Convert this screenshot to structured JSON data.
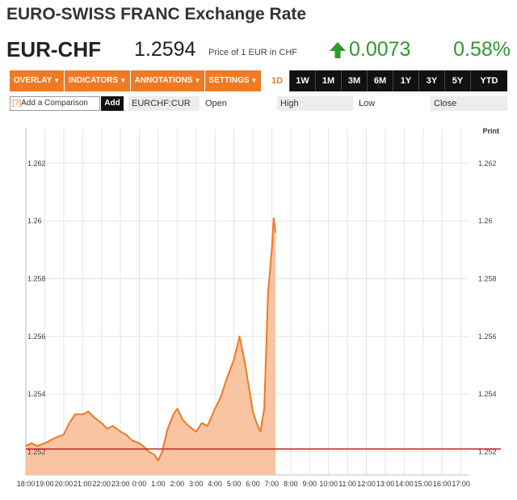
{
  "page": {
    "title": "EURO-SWISS FRANC Exchange Rate"
  },
  "quote": {
    "ticker": "EUR-CHF",
    "price": "1.2594",
    "price_desc": "Price of 1 EUR in CHF",
    "direction_icon": "up-arrow-icon",
    "change": "0.0073",
    "change_pct": "0.58%"
  },
  "toolbar": {
    "menus": [
      {
        "label": "OVERLAY"
      },
      {
        "label": "INDICATORS"
      },
      {
        "label": "ANNOTATIONS"
      },
      {
        "label": "SETTINGS"
      }
    ],
    "ranges": [
      "1D",
      "1W",
      "1M",
      "3M",
      "6M",
      "1Y",
      "3Y",
      "5Y",
      "YTD"
    ],
    "active_range": "1D"
  },
  "compare": {
    "placeholder": "Add a Comparison",
    "qmark": "[?]",
    "add_label": "Add",
    "symbol": "EURCHF:CUR",
    "open_label": "Open",
    "high_label": "High",
    "low_label": "Low",
    "close_label": "Close"
  },
  "print_label": "Print",
  "colors": {
    "accent": "#f07a23",
    "positive": "#2e9a2e",
    "area_fill": "#f8c4a2",
    "line": "#f07a23",
    "reference_line": "#d32f2f"
  },
  "chart_data": {
    "type": "area",
    "ylim": [
      1.2512,
      1.2632
    ],
    "y_ticks": [
      1.252,
      1.254,
      1.256,
      1.258,
      1.26,
      1.262
    ],
    "y_tick_labels": [
      "1.252",
      "1.254",
      "1.256",
      "1.258",
      "1.26",
      "1.262"
    ],
    "x_tick_labels": [
      "18:00",
      "19:00",
      "20:00",
      "21:00",
      "22:00",
      "23:00",
      "0:00",
      "1:00",
      "2:00",
      "3:00",
      "4:00",
      "5:00",
      "6:00",
      "7:00",
      "8:00",
      "9:00",
      "10:00",
      "11:00",
      "12:00",
      "13:00",
      "14:00",
      "15:00",
      "16:00",
      "17:00"
    ],
    "xlim": [
      0,
      23.4
    ],
    "reference_value": 1.2521,
    "grid": true,
    "series": [
      {
        "x": [
          0,
          0.3,
          0.6,
          1.0,
          1.3,
          1.6,
          2.0,
          2.3,
          2.6,
          3.0,
          3.3,
          3.6,
          4.0,
          4.3,
          4.6,
          5.0,
          5.3,
          5.6,
          6.0,
          6.2,
          6.5,
          6.8,
          7.0,
          7.2,
          7.5,
          7.8,
          8.0,
          8.3,
          8.6,
          9.0,
          9.3,
          9.6,
          10.0,
          10.3,
          10.6,
          11.0,
          11.3,
          11.6,
          12.0,
          12.2,
          12.4,
          12.6,
          12.8,
          13.0,
          13.1,
          13.2
        ],
        "values": [
          1.2522,
          1.2523,
          1.2522,
          1.2523,
          1.2524,
          1.2525,
          1.2526,
          1.253,
          1.2533,
          1.2533,
          1.2534,
          1.2532,
          1.253,
          1.2528,
          1.2529,
          1.2527,
          1.2526,
          1.2524,
          1.2523,
          1.2522,
          1.252,
          1.2519,
          1.2517,
          1.252,
          1.2528,
          1.2533,
          1.2535,
          1.2531,
          1.2529,
          1.2527,
          1.253,
          1.2529,
          1.2535,
          1.2539,
          1.2545,
          1.2552,
          1.256,
          1.255,
          1.2534,
          1.253,
          1.2527,
          1.2535,
          1.2575,
          1.259,
          1.2601,
          1.2596
        ]
      }
    ]
  }
}
